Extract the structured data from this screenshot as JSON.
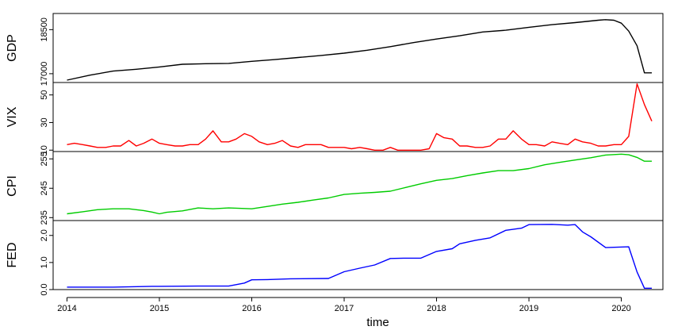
{
  "chart_data": {
    "type": "line",
    "layout": "stacked-panels",
    "xlabel": "time",
    "xlim": [
      2013.85,
      2020.45
    ],
    "x_ticks": [
      2014,
      2015,
      2016,
      2017,
      2018,
      2019,
      2020
    ],
    "x_tick_labels": [
      "2014",
      "2015",
      "2016",
      "2017",
      "2018",
      "2019",
      "2020"
    ],
    "grid": false,
    "panels": [
      {
        "name": "GDP",
        "color": "#000000",
        "ylim": [
          16700,
          19050
        ],
        "y_ticks": [
          17000,
          18500
        ],
        "y_tick_labels": [
          "17000",
          "18500"
        ],
        "x": [
          2014.0,
          2014.25,
          2014.5,
          2014.75,
          2015.0,
          2015.25,
          2015.5,
          2015.75,
          2016.0,
          2016.25,
          2016.5,
          2016.75,
          2017.0,
          2017.25,
          2017.5,
          2017.75,
          2018.0,
          2018.25,
          2018.5,
          2018.75,
          2019.0,
          2019.25,
          2019.5,
          2019.75,
          2019.83,
          2019.92,
          2020.0,
          2020.08,
          2020.17,
          2020.25,
          2020.33
        ],
        "y": [
          16780,
          16950,
          17090,
          17150,
          17230,
          17320,
          17340,
          17350,
          17420,
          17480,
          17550,
          17620,
          17700,
          17800,
          17920,
          18060,
          18180,
          18290,
          18420,
          18480,
          18580,
          18670,
          18740,
          18820,
          18840,
          18820,
          18720,
          18450,
          17950,
          17030,
          17030
        ]
      },
      {
        "name": "VIX",
        "color": "#ff0000",
        "ylim": [
          9,
          59
        ],
        "y_ticks": [
          10,
          30,
          50
        ],
        "y_tick_labels": [
          "10",
          "30",
          "50"
        ],
        "x": [
          2014.0,
          2014.08,
          2014.17,
          2014.25,
          2014.33,
          2014.42,
          2014.5,
          2014.58,
          2014.67,
          2014.75,
          2014.83,
          2014.92,
          2015.0,
          2015.08,
          2015.17,
          2015.25,
          2015.33,
          2015.42,
          2015.5,
          2015.58,
          2015.67,
          2015.75,
          2015.83,
          2015.92,
          2016.0,
          2016.08,
          2016.17,
          2016.25,
          2016.33,
          2016.42,
          2016.5,
          2016.58,
          2016.67,
          2016.75,
          2016.83,
          2016.92,
          2017.0,
          2017.08,
          2017.17,
          2017.25,
          2017.33,
          2017.42,
          2017.5,
          2017.58,
          2017.67,
          2017.75,
          2017.83,
          2017.92,
          2018.0,
          2018.08,
          2018.17,
          2018.25,
          2018.33,
          2018.42,
          2018.5,
          2018.58,
          2018.67,
          2018.75,
          2018.83,
          2018.92,
          2019.0,
          2019.08,
          2019.17,
          2019.25,
          2019.33,
          2019.42,
          2019.5,
          2019.58,
          2019.67,
          2019.75,
          2019.83,
          2019.92,
          2020.0,
          2020.08,
          2020.17,
          2020.25,
          2020.33
        ],
        "y": [
          14,
          15,
          14,
          13,
          12,
          12,
          13,
          13,
          17,
          13,
          15,
          18,
          15,
          14,
          13,
          13,
          14,
          14,
          18,
          24,
          16,
          16,
          18,
          22,
          20,
          16,
          14,
          15,
          17,
          13,
          12,
          14,
          14,
          14,
          12,
          12,
          12,
          11,
          12,
          11,
          10,
          10,
          12,
          10,
          10,
          10,
          10,
          11,
          22,
          19,
          18,
          13,
          13,
          12,
          12,
          13,
          18,
          18,
          24,
          18,
          14,
          14,
          13,
          16,
          15,
          14,
          18,
          16,
          15,
          13,
          13,
          14,
          14,
          20,
          58,
          43,
          31
        ]
      },
      {
        "name": "CPI",
        "color": "#00cc00",
        "ylim": [
          234,
          257.5
        ],
        "y_ticks": [
          235,
          245,
          255
        ],
        "y_tick_labels": [
          "235",
          "245",
          "255"
        ],
        "x": [
          2014.0,
          2014.17,
          2014.33,
          2014.5,
          2014.67,
          2014.83,
          2014.92,
          2015.0,
          2015.08,
          2015.25,
          2015.42,
          2015.58,
          2015.75,
          2015.92,
          2016.0,
          2016.17,
          2016.33,
          2016.5,
          2016.67,
          2016.83,
          2017.0,
          2017.17,
          2017.33,
          2017.5,
          2017.67,
          2017.83,
          2018.0,
          2018.17,
          2018.33,
          2018.5,
          2018.67,
          2018.83,
          2019.0,
          2019.17,
          2019.33,
          2019.5,
          2019.67,
          2019.83,
          2020.0,
          2020.08,
          2020.17,
          2020.25,
          2020.33
        ],
        "y": [
          236.3,
          237.0,
          237.7,
          238.0,
          238.0,
          237.4,
          236.9,
          236.3,
          236.8,
          237.3,
          238.3,
          238.0,
          238.3,
          238.1,
          238.0,
          238.8,
          239.6,
          240.2,
          241.0,
          241.7,
          242.9,
          243.3,
          243.6,
          244.0,
          245.3,
          246.5,
          247.7,
          248.3,
          249.3,
          250.2,
          251.0,
          251.0,
          251.7,
          253.0,
          253.8,
          254.6,
          255.4,
          256.3,
          256.6,
          256.4,
          255.5,
          254.2,
          254.2
        ]
      },
      {
        "name": "FED",
        "color": "#0000ff",
        "ylim": [
          0,
          2.55
        ],
        "y_ticks": [
          0.0,
          1.0,
          2.0
        ],
        "y_tick_labels": [
          "0.0",
          "1.0",
          "2.0"
        ],
        "x": [
          2014.0,
          2014.33,
          2014.5,
          2014.92,
          2015.0,
          2015.42,
          2015.75,
          2015.92,
          2016.0,
          2016.17,
          2016.42,
          2016.83,
          2017.0,
          2017.17,
          2017.33,
          2017.5,
          2017.67,
          2017.83,
          2018.0,
          2018.17,
          2018.25,
          2018.42,
          2018.58,
          2018.75,
          2018.92,
          2019.0,
          2019.25,
          2019.42,
          2019.5,
          2019.58,
          2019.67,
          2019.83,
          2020.08,
          2020.17,
          2020.25,
          2020.33
        ],
        "y": [
          0.09,
          0.09,
          0.09,
          0.12,
          0.12,
          0.13,
          0.13,
          0.24,
          0.36,
          0.37,
          0.4,
          0.41,
          0.66,
          0.79,
          0.91,
          1.15,
          1.16,
          1.16,
          1.41,
          1.51,
          1.69,
          1.82,
          1.91,
          2.19,
          2.27,
          2.4,
          2.41,
          2.38,
          2.4,
          2.13,
          1.95,
          1.55,
          1.58,
          0.65,
          0.05,
          0.05
        ]
      }
    ]
  }
}
